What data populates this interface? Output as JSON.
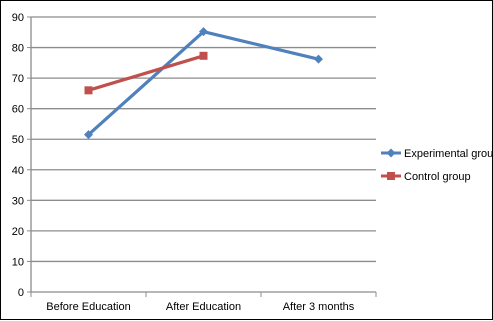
{
  "chart_data": {
    "type": "line",
    "title": "",
    "xlabel": "",
    "ylabel": "",
    "categories": [
      "Before Education",
      "After Education",
      "After 3 months"
    ],
    "ylim": [
      0,
      90
    ],
    "ytick_step": 10,
    "grid": true,
    "legend_position": "right",
    "series": [
      {
        "name": "Experimental group",
        "values": [
          51.5,
          85.2,
          76.2
        ],
        "color": "#4F81BD",
        "marker": "diamond"
      },
      {
        "name": "Control group",
        "values": [
          66.0,
          77.3,
          null
        ],
        "color": "#C0504D",
        "marker": "square"
      }
    ]
  }
}
